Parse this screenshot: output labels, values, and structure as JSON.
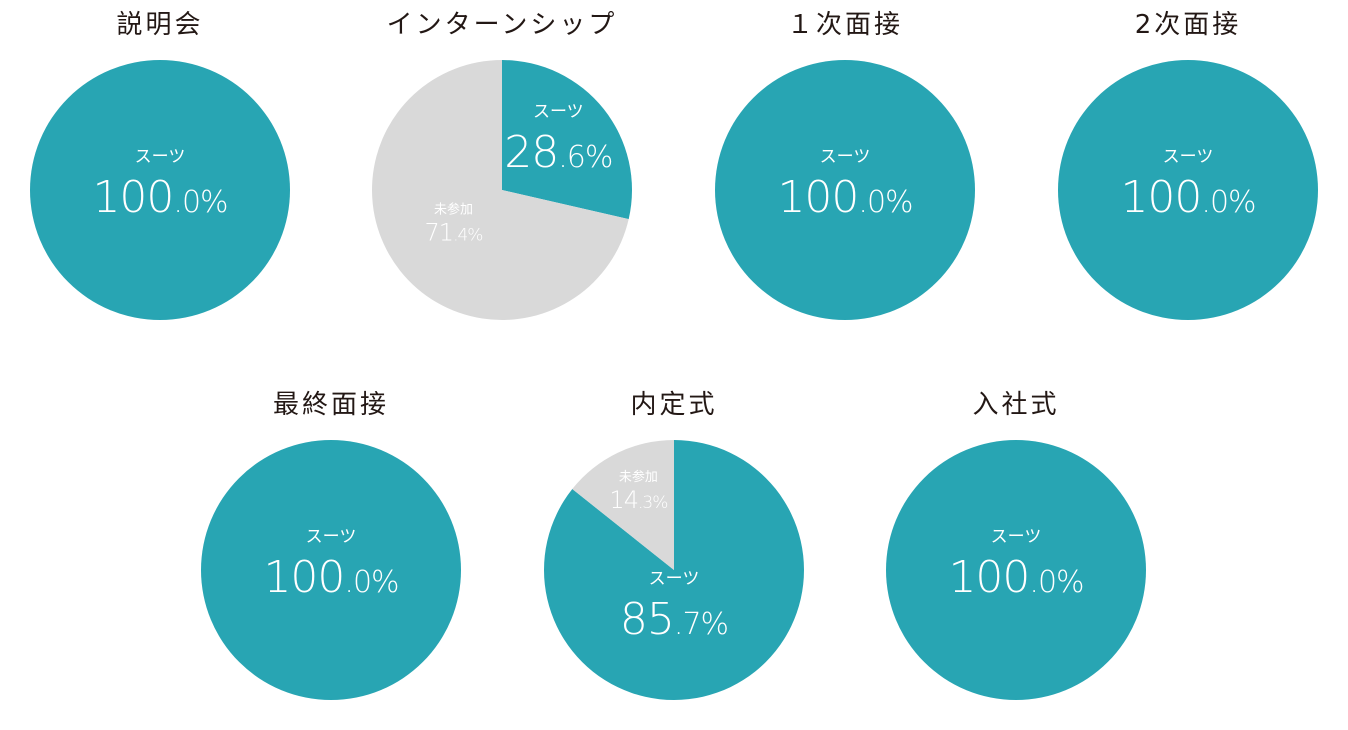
{
  "chart_data": [
    {
      "type": "pie",
      "title": "説明会",
      "slices": [
        {
          "label": "スーツ",
          "value": 100.0,
          "display": "100.0%"
        }
      ]
    },
    {
      "type": "pie",
      "title": "インターンシップ",
      "slices": [
        {
          "label": "スーツ",
          "value": 28.6,
          "display": "28.6%"
        },
        {
          "label": "未参加",
          "value": 71.4,
          "display": "71.4%"
        }
      ]
    },
    {
      "type": "pie",
      "title": "１次面接",
      "slices": [
        {
          "label": "スーツ",
          "value": 100.0,
          "display": "100.0%"
        }
      ]
    },
    {
      "type": "pie",
      "title": "2次面接",
      "slices": [
        {
          "label": "スーツ",
          "value": 100.0,
          "display": "100.0%"
        }
      ]
    },
    {
      "type": "pie",
      "title": "最終面接",
      "slices": [
        {
          "label": "スーツ",
          "value": 100.0,
          "display": "100.0%"
        }
      ]
    },
    {
      "type": "pie",
      "title": "内定式",
      "slices": [
        {
          "label": "スーツ",
          "value": 85.7,
          "display": "85.7%"
        },
        {
          "label": "未参加",
          "value": 14.3,
          "display": "14.3%"
        }
      ]
    },
    {
      "type": "pie",
      "title": "入社式",
      "slices": [
        {
          "label": "スーツ",
          "value": 100.0,
          "display": "100.0%"
        }
      ]
    }
  ],
  "colors": {
    "スーツ": "#28a5b3",
    "未参加": "#d9d9d9",
    "title": "#231815",
    "label": "#ffffff"
  }
}
